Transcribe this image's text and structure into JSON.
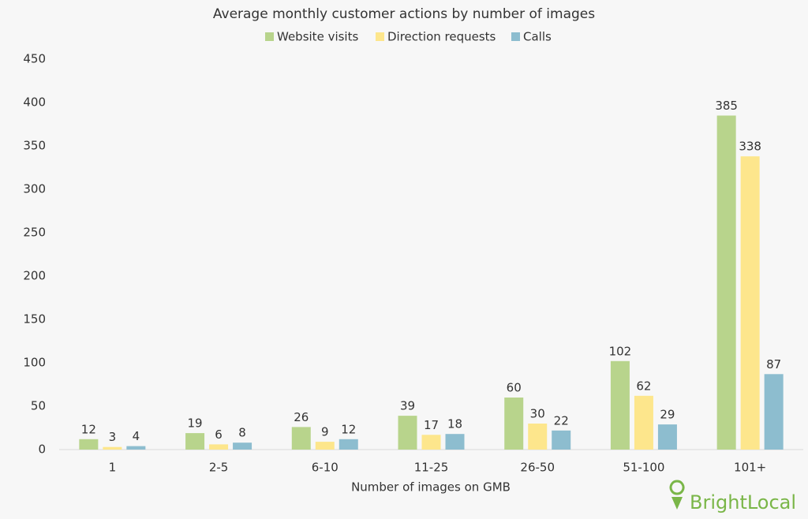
{
  "chart_data": {
    "type": "bar",
    "title": "Average monthly customer actions by number of images",
    "x_label": "Number of images on GMB",
    "categories": [
      "1",
      "2-5",
      "6-10",
      "11-25",
      "26-50",
      "51-100",
      "101+"
    ],
    "series": [
      {
        "name": "Website visits",
        "color": "#b8d48c",
        "values": [
          12,
          19,
          26,
          39,
          60,
          102,
          385
        ]
      },
      {
        "name": "Direction requests",
        "color": "#fde68c",
        "values": [
          3,
          6,
          9,
          17,
          30,
          62,
          338
        ]
      },
      {
        "name": "Calls",
        "color": "#8dbdcf",
        "values": [
          4,
          8,
          12,
          18,
          22,
          29,
          87
        ]
      }
    ],
    "ylim": [
      0,
      450
    ],
    "yticks": [
      0,
      50,
      100,
      150,
      200,
      250,
      300,
      350,
      400,
      450
    ],
    "grid": false,
    "legend": "top",
    "logo": "BrightLocal"
  }
}
